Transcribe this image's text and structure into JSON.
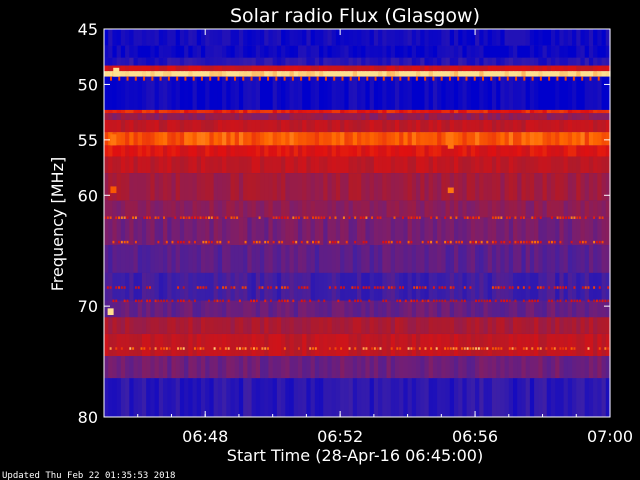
{
  "chart_data": {
    "type": "heatmap",
    "title": "Solar radio Flux (Glasgow)",
    "xlabel": "Start Time (28-Apr-16 06:45:00)",
    "ylabel": "Frequency [MHz]",
    "xlim": [
      "06:45",
      "07:00"
    ],
    "ylim": [
      45,
      80
    ],
    "y_inverted": true,
    "x_ticks": [
      "06:48",
      "06:52",
      "06:56",
      "07:00"
    ],
    "y_ticks": [
      45,
      50,
      55,
      60,
      70,
      80
    ],
    "colormap": [
      "#0000cc",
      "#3b1fa8",
      "#7a1e6e",
      "#b01a2a",
      "#e01010",
      "#ff6a00",
      "#ffe090"
    ],
    "bands": [
      {
        "freq": [
          45.0,
          46.5
        ],
        "intensity": 0.05
      },
      {
        "freq": [
          46.5,
          47.6
        ],
        "intensity": 0.03
      },
      {
        "freq": [
          47.6,
          48.3
        ],
        "intensity": 0.1
      },
      {
        "freq": [
          48.3,
          48.8
        ],
        "intensity": 0.6
      },
      {
        "freq": [
          48.8,
          49.3
        ],
        "intensity": 1.0
      },
      {
        "freq": [
          49.3,
          52.3
        ],
        "intensity": 0.03
      },
      {
        "freq": [
          52.3,
          52.6
        ],
        "intensity": 0.7
      },
      {
        "freq": [
          52.6,
          53.2
        ],
        "intensity": 0.4
      },
      {
        "freq": [
          53.2,
          54.3
        ],
        "intensity": 0.55
      },
      {
        "freq": [
          54.3,
          55.5
        ],
        "intensity": 0.8
      },
      {
        "freq": [
          55.5,
          56.5
        ],
        "intensity": 0.65
      },
      {
        "freq": [
          56.5,
          58.0
        ],
        "intensity": 0.55
      },
      {
        "freq": [
          58.0,
          60.5
        ],
        "intensity": 0.45
      },
      {
        "freq": [
          60.5,
          62.0
        ],
        "intensity": 0.38
      },
      {
        "freq": [
          62.0,
          64.5
        ],
        "intensity": 0.32
      },
      {
        "freq": [
          64.5,
          67.0
        ],
        "intensity": 0.25
      },
      {
        "freq": [
          67.0,
          69.5
        ],
        "intensity": 0.18
      },
      {
        "freq": [
          69.5,
          71.0
        ],
        "intensity": 0.28
      },
      {
        "freq": [
          71.0,
          72.5
        ],
        "intensity": 0.48
      },
      {
        "freq": [
          72.5,
          74.5
        ],
        "intensity": 0.55
      },
      {
        "freq": [
          74.5,
          76.5
        ],
        "intensity": 0.3
      },
      {
        "freq": [
          76.5,
          80.0
        ],
        "intensity": 0.12
      }
    ],
    "hot_lines": [
      {
        "freq": 62.0,
        "intensity": 0.75
      },
      {
        "freq": 64.2,
        "intensity": 0.75
      },
      {
        "freq": 68.3,
        "intensity": 0.65
      },
      {
        "freq": 69.5,
        "intensity": 0.6
      },
      {
        "freq": 73.8,
        "intensity": 0.85
      }
    ],
    "events": [
      {
        "time": "06:45:20",
        "freq": [
          48.5,
          49.3
        ],
        "intensity": 1.0
      },
      {
        "time": "06:55:15",
        "freq": [
          54.3,
          55.8
        ],
        "intensity": 0.85
      },
      {
        "time": "06:55:15",
        "freq": [
          59.3,
          59.8
        ],
        "intensity": 0.85
      },
      {
        "time": "06:45:15",
        "freq": [
          54.5,
          55.5
        ],
        "intensity": 0.85
      },
      {
        "time": "06:45:15",
        "freq": [
          59.2,
          59.8
        ],
        "intensity": 0.8
      },
      {
        "time": "06:45:10",
        "freq": [
          70.2,
          70.8
        ],
        "intensity": 1.0
      }
    ]
  },
  "footer": {
    "updated": "Updated Thu Feb 22 01:35:53 2018"
  }
}
